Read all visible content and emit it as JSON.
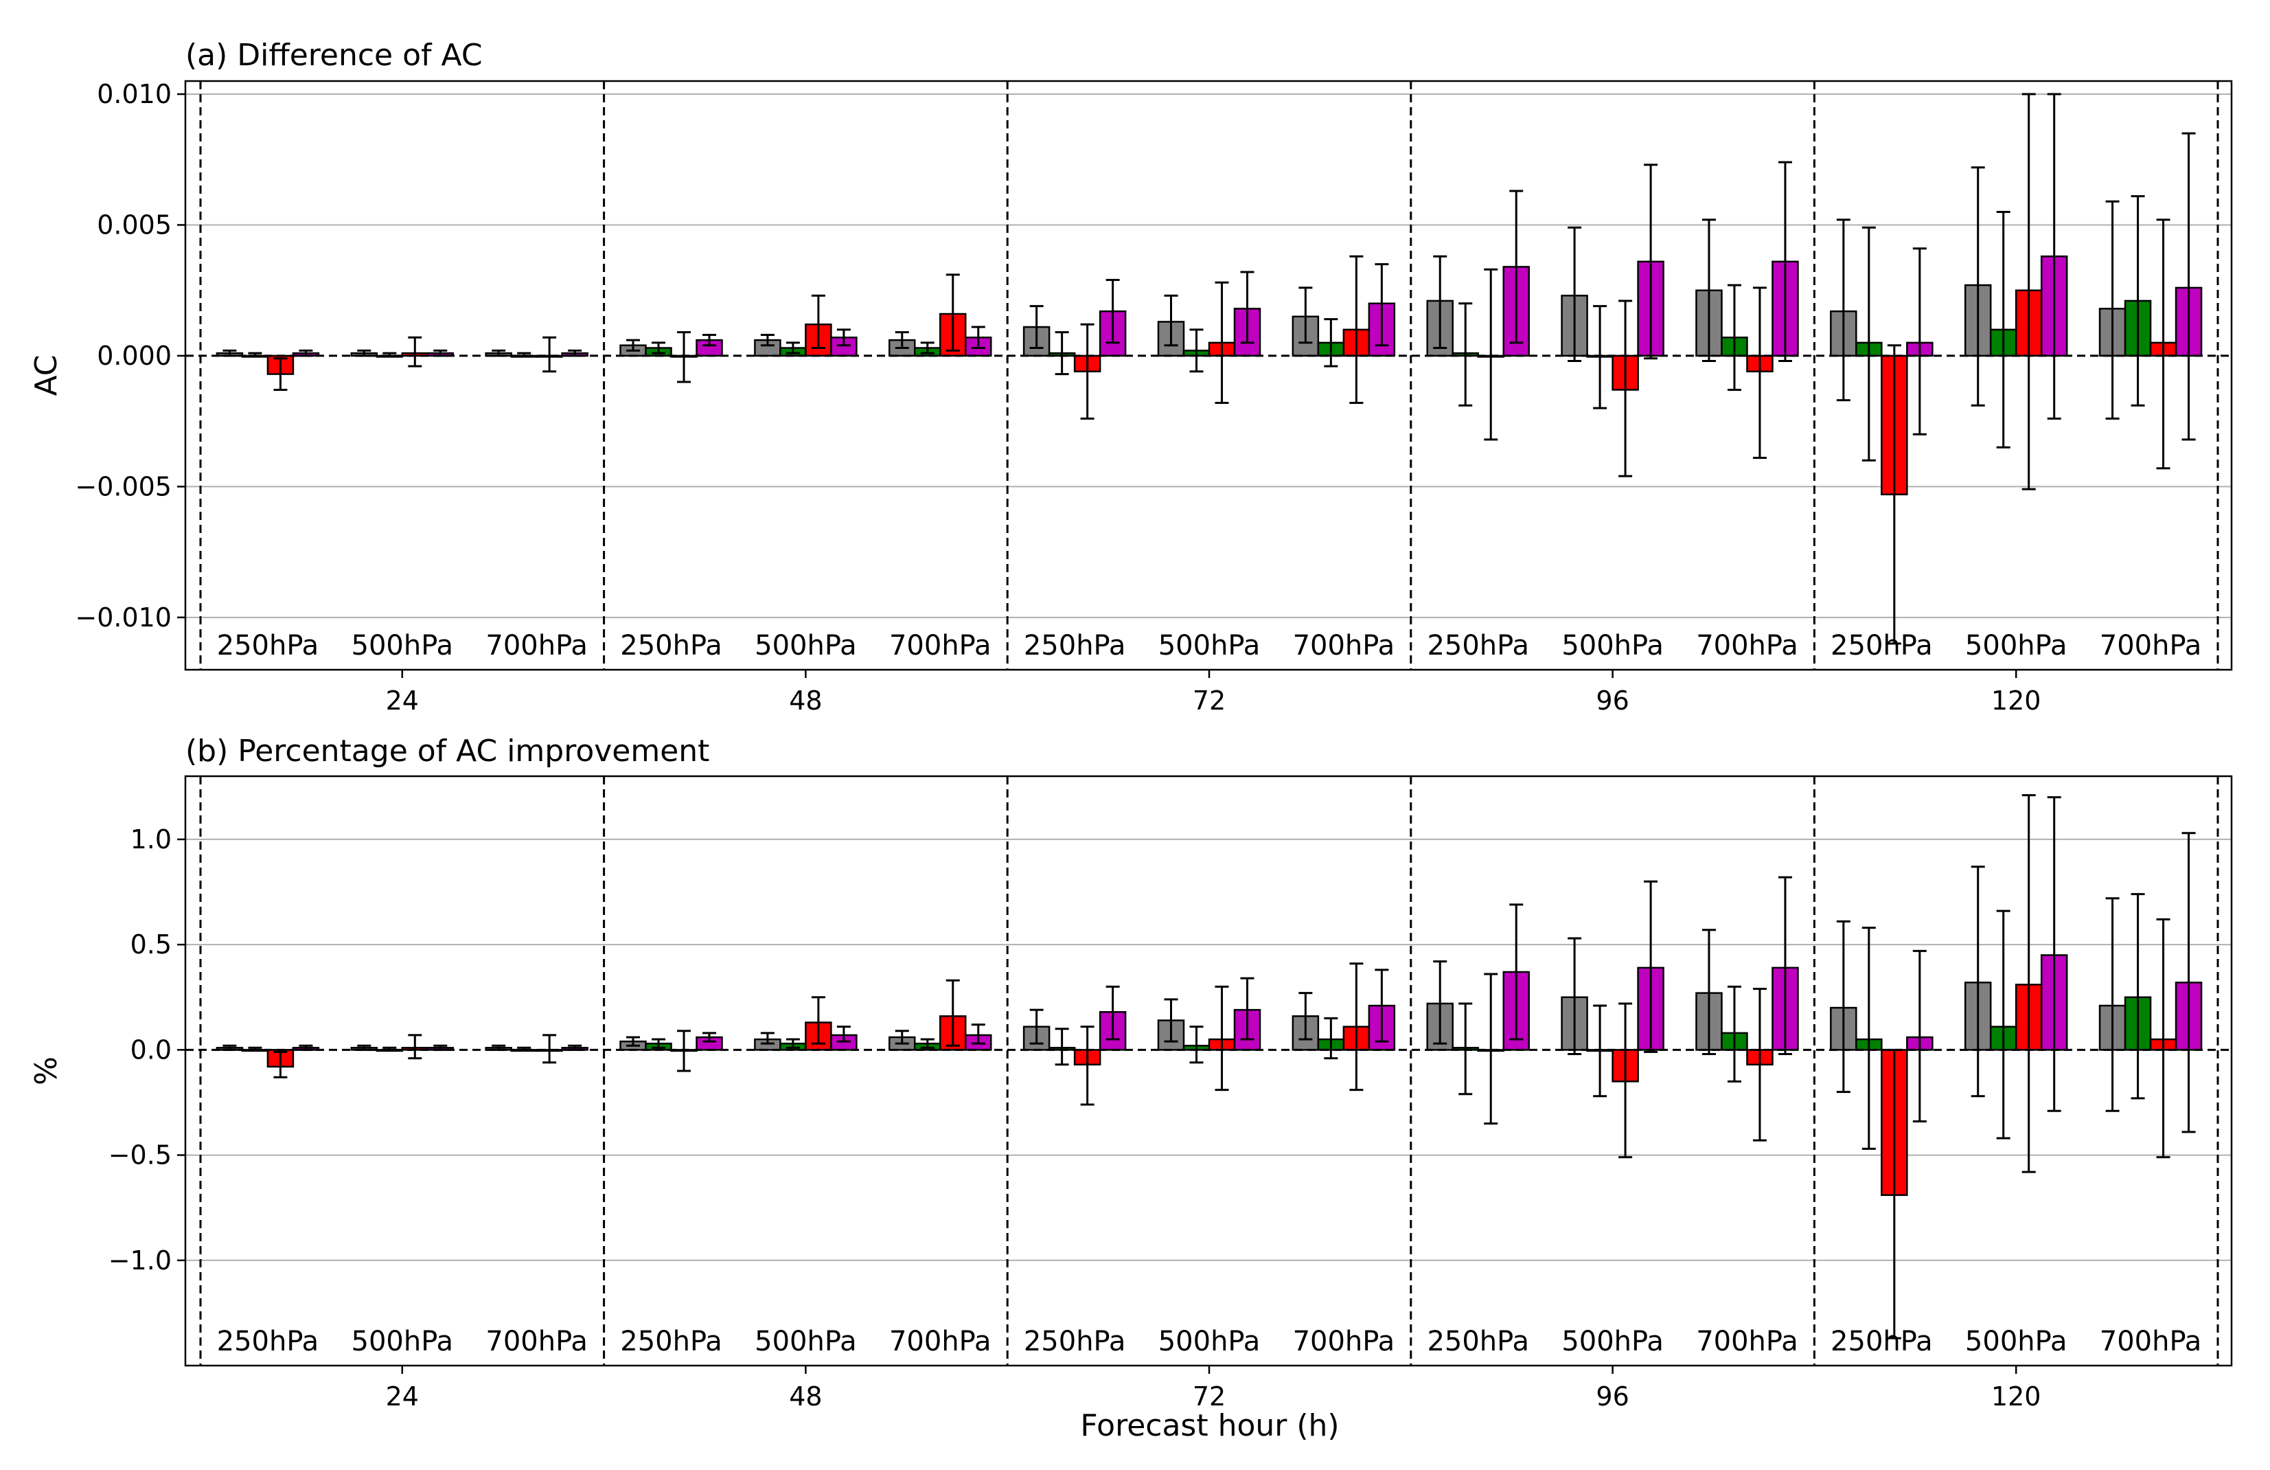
{
  "figure": {
    "xlabel": "Forecast hour (h)"
  },
  "colors": {
    "series": [
      "#808080",
      "#008000",
      "#ff0000",
      "#bf00bf"
    ],
    "edge": "#000000",
    "grid": "#b0b0b0"
  },
  "chart_data": [
    {
      "type": "bar",
      "title": "(a) Difference of AC",
      "ylabel": "AC",
      "xlabel": "",
      "ylim": [
        -0.012,
        0.0105
      ],
      "yticks": [
        0.01,
        0.005,
        0.0,
        -0.005,
        -0.01
      ],
      "ytick_labels": [
        "0.010",
        "0.005",
        "0.000",
        "−0.005",
        "−0.010"
      ],
      "grid": "horizontal",
      "groups": [
        "24",
        "48",
        "72",
        "96",
        "120"
      ],
      "levels": [
        "250hPa",
        "500hPa",
        "700hPa"
      ],
      "series": [
        {
          "values": [
            [
              0.0001,
              0.0001,
              0.0001
            ],
            [
              0.0004,
              0.0006,
              0.0006
            ],
            [
              0.0011,
              0.0013,
              0.0015
            ],
            [
              0.0021,
              0.0023,
              0.0025
            ],
            [
              0.0017,
              0.0027,
              0.0018
            ]
          ],
          "err_low": [
            [
              0.0,
              0.0,
              0.0
            ],
            [
              0.0002,
              0.0004,
              0.0003
            ],
            [
              0.0003,
              0.0004,
              0.0005
            ],
            [
              0.0003,
              -0.0002,
              -0.0002
            ],
            [
              -0.0017,
              -0.0019,
              -0.0024
            ]
          ],
          "err_high": [
            [
              0.0002,
              0.0002,
              0.0002
            ],
            [
              0.0006,
              0.0008,
              0.0009
            ],
            [
              0.0019,
              0.0023,
              0.0026
            ],
            [
              0.0038,
              0.0049,
              0.0052
            ],
            [
              0.0052,
              0.0072,
              0.0059
            ]
          ]
        },
        {
          "values": [
            [
              0.0,
              0.0,
              0.0
            ],
            [
              0.0003,
              0.0003,
              0.0003
            ],
            [
              0.0001,
              0.0002,
              0.0005
            ],
            [
              0.0001,
              0.0,
              0.0007
            ],
            [
              0.0005,
              0.001,
              0.0021
            ]
          ],
          "err_low": [
            [
              0.0,
              0.0,
              0.0
            ],
            [
              0.0001,
              0.0001,
              0.0001
            ],
            [
              -0.0007,
              -0.0006,
              -0.0004
            ],
            [
              -0.0019,
              -0.002,
              -0.0013
            ],
            [
              -0.004,
              -0.0035,
              -0.0019
            ]
          ],
          "err_high": [
            [
              0.0001,
              0.0001,
              0.0001
            ],
            [
              0.0005,
              0.0005,
              0.0005
            ],
            [
              0.0009,
              0.001,
              0.0014
            ],
            [
              0.002,
              0.0019,
              0.0027
            ],
            [
              0.0049,
              0.0055,
              0.0061
            ]
          ]
        },
        {
          "values": [
            [
              -0.0007,
              0.0001,
              0.0
            ],
            [
              0.0,
              0.0012,
              0.0016
            ],
            [
              -0.0006,
              0.0005,
              0.001
            ],
            [
              0.0,
              -0.0013,
              -0.0006
            ],
            [
              -0.0053,
              0.0025,
              0.0005
            ]
          ],
          "err_low": [
            [
              -0.0013,
              -0.0004,
              -0.0006
            ],
            [
              -0.001,
              0.0003,
              0.0002
            ],
            [
              -0.0024,
              -0.0018,
              -0.0018
            ],
            [
              -0.0032,
              -0.0046,
              -0.0039
            ],
            [
              -0.011,
              -0.0051,
              -0.0043
            ]
          ],
          "err_high": [
            [
              -0.0001,
              0.0007,
              0.0007
            ],
            [
              0.0009,
              0.0023,
              0.0031
            ],
            [
              0.0012,
              0.0028,
              0.0038
            ],
            [
              0.0033,
              0.0021,
              0.0026
            ],
            [
              0.0004,
              0.01,
              0.0052
            ]
          ]
        },
        {
          "values": [
            [
              0.0001,
              0.0001,
              0.0001
            ],
            [
              0.0006,
              0.0007,
              0.0007
            ],
            [
              0.0017,
              0.0018,
              0.002
            ],
            [
              0.0034,
              0.0036,
              0.0036
            ],
            [
              0.0005,
              0.0038,
              0.0026
            ]
          ],
          "err_low": [
            [
              0.0,
              0.0,
              0.0
            ],
            [
              0.0004,
              0.0004,
              0.0003
            ],
            [
              0.0005,
              0.0005,
              0.0004
            ],
            [
              0.0005,
              -0.0001,
              -0.0002
            ],
            [
              -0.003,
              -0.0024,
              -0.0032
            ]
          ],
          "err_high": [
            [
              0.0002,
              0.0002,
              0.0002
            ],
            [
              0.0008,
              0.001,
              0.0011
            ],
            [
              0.0029,
              0.0032,
              0.0035
            ],
            [
              0.0063,
              0.0073,
              0.0074
            ],
            [
              0.0041,
              0.01,
              0.0085
            ]
          ]
        }
      ]
    },
    {
      "type": "bar",
      "title": "(b) Percentage of AC improvement",
      "ylabel": "%",
      "xlabel": "Forecast hour (h)",
      "ylim": [
        -1.5,
        1.3
      ],
      "yticks": [
        1.0,
        0.5,
        0.0,
        -0.5,
        -1.0
      ],
      "ytick_labels": [
        "1.0",
        "0.5",
        "0.0",
        "−0.5",
        "−1.0"
      ],
      "grid": "horizontal",
      "groups": [
        "24",
        "48",
        "72",
        "96",
        "120"
      ],
      "levels": [
        "250hPa",
        "500hPa",
        "700hPa"
      ],
      "series": [
        {
          "values": [
            [
              0.01,
              0.01,
              0.01
            ],
            [
              0.04,
              0.05,
              0.06
            ],
            [
              0.11,
              0.14,
              0.16
            ],
            [
              0.22,
              0.25,
              0.27
            ],
            [
              0.2,
              0.32,
              0.21
            ]
          ],
          "err_low": [
            [
              0.0,
              0.0,
              0.0
            ],
            [
              0.02,
              0.03,
              0.03
            ],
            [
              0.03,
              0.04,
              0.05
            ],
            [
              0.03,
              -0.02,
              -0.02
            ],
            [
              -0.2,
              -0.22,
              -0.29
            ]
          ],
          "err_high": [
            [
              0.02,
              0.02,
              0.02
            ],
            [
              0.06,
              0.08,
              0.09
            ],
            [
              0.19,
              0.24,
              0.27
            ],
            [
              0.42,
              0.53,
              0.57
            ],
            [
              0.61,
              0.87,
              0.72
            ]
          ]
        },
        {
          "values": [
            [
              0.0,
              0.0,
              0.0
            ],
            [
              0.03,
              0.03,
              0.03
            ],
            [
              0.01,
              0.02,
              0.05
            ],
            [
              0.01,
              0.0,
              0.08
            ],
            [
              0.05,
              0.11,
              0.25
            ]
          ],
          "err_low": [
            [
              0.0,
              0.0,
              0.0
            ],
            [
              0.01,
              0.01,
              0.01
            ],
            [
              -0.07,
              -0.06,
              -0.04
            ],
            [
              -0.21,
              -0.22,
              -0.15
            ],
            [
              -0.47,
              -0.42,
              -0.23
            ]
          ],
          "err_high": [
            [
              0.01,
              0.01,
              0.01
            ],
            [
              0.05,
              0.05,
              0.05
            ],
            [
              0.1,
              0.11,
              0.15
            ],
            [
              0.22,
              0.21,
              0.3
            ],
            [
              0.58,
              0.66,
              0.74
            ]
          ]
        },
        {
          "values": [
            [
              -0.08,
              0.01,
              0.0
            ],
            [
              0.0,
              0.13,
              0.16
            ],
            [
              -0.07,
              0.05,
              0.11
            ],
            [
              0.0,
              -0.15,
              -0.07
            ],
            [
              -0.69,
              0.31,
              0.05
            ]
          ],
          "err_low": [
            [
              -0.13,
              -0.04,
              -0.06
            ],
            [
              -0.1,
              0.03,
              0.02
            ],
            [
              -0.26,
              -0.19,
              -0.19
            ],
            [
              -0.35,
              -0.51,
              -0.43
            ],
            [
              -1.37,
              -0.58,
              -0.51
            ]
          ],
          "err_high": [
            [
              -0.01,
              0.07,
              0.07
            ],
            [
              0.09,
              0.25,
              0.33
            ],
            [
              0.11,
              0.3,
              0.41
            ],
            [
              0.36,
              0.22,
              0.29
            ],
            [
              0.0,
              1.21,
              0.62
            ]
          ]
        },
        {
          "values": [
            [
              0.01,
              0.01,
              0.01
            ],
            [
              0.06,
              0.07,
              0.07
            ],
            [
              0.18,
              0.19,
              0.21
            ],
            [
              0.37,
              0.39,
              0.39
            ],
            [
              0.06,
              0.45,
              0.32
            ]
          ],
          "err_low": [
            [
              0.0,
              0.0,
              0.0
            ],
            [
              0.04,
              0.04,
              0.03
            ],
            [
              0.05,
              0.05,
              0.04
            ],
            [
              0.05,
              -0.01,
              -0.02
            ],
            [
              -0.34,
              -0.29,
              -0.39
            ]
          ],
          "err_high": [
            [
              0.02,
              0.02,
              0.02
            ],
            [
              0.08,
              0.11,
              0.12
            ],
            [
              0.3,
              0.34,
              0.38
            ],
            [
              0.69,
              0.8,
              0.82
            ],
            [
              0.47,
              1.2,
              1.03
            ]
          ]
        }
      ]
    }
  ]
}
